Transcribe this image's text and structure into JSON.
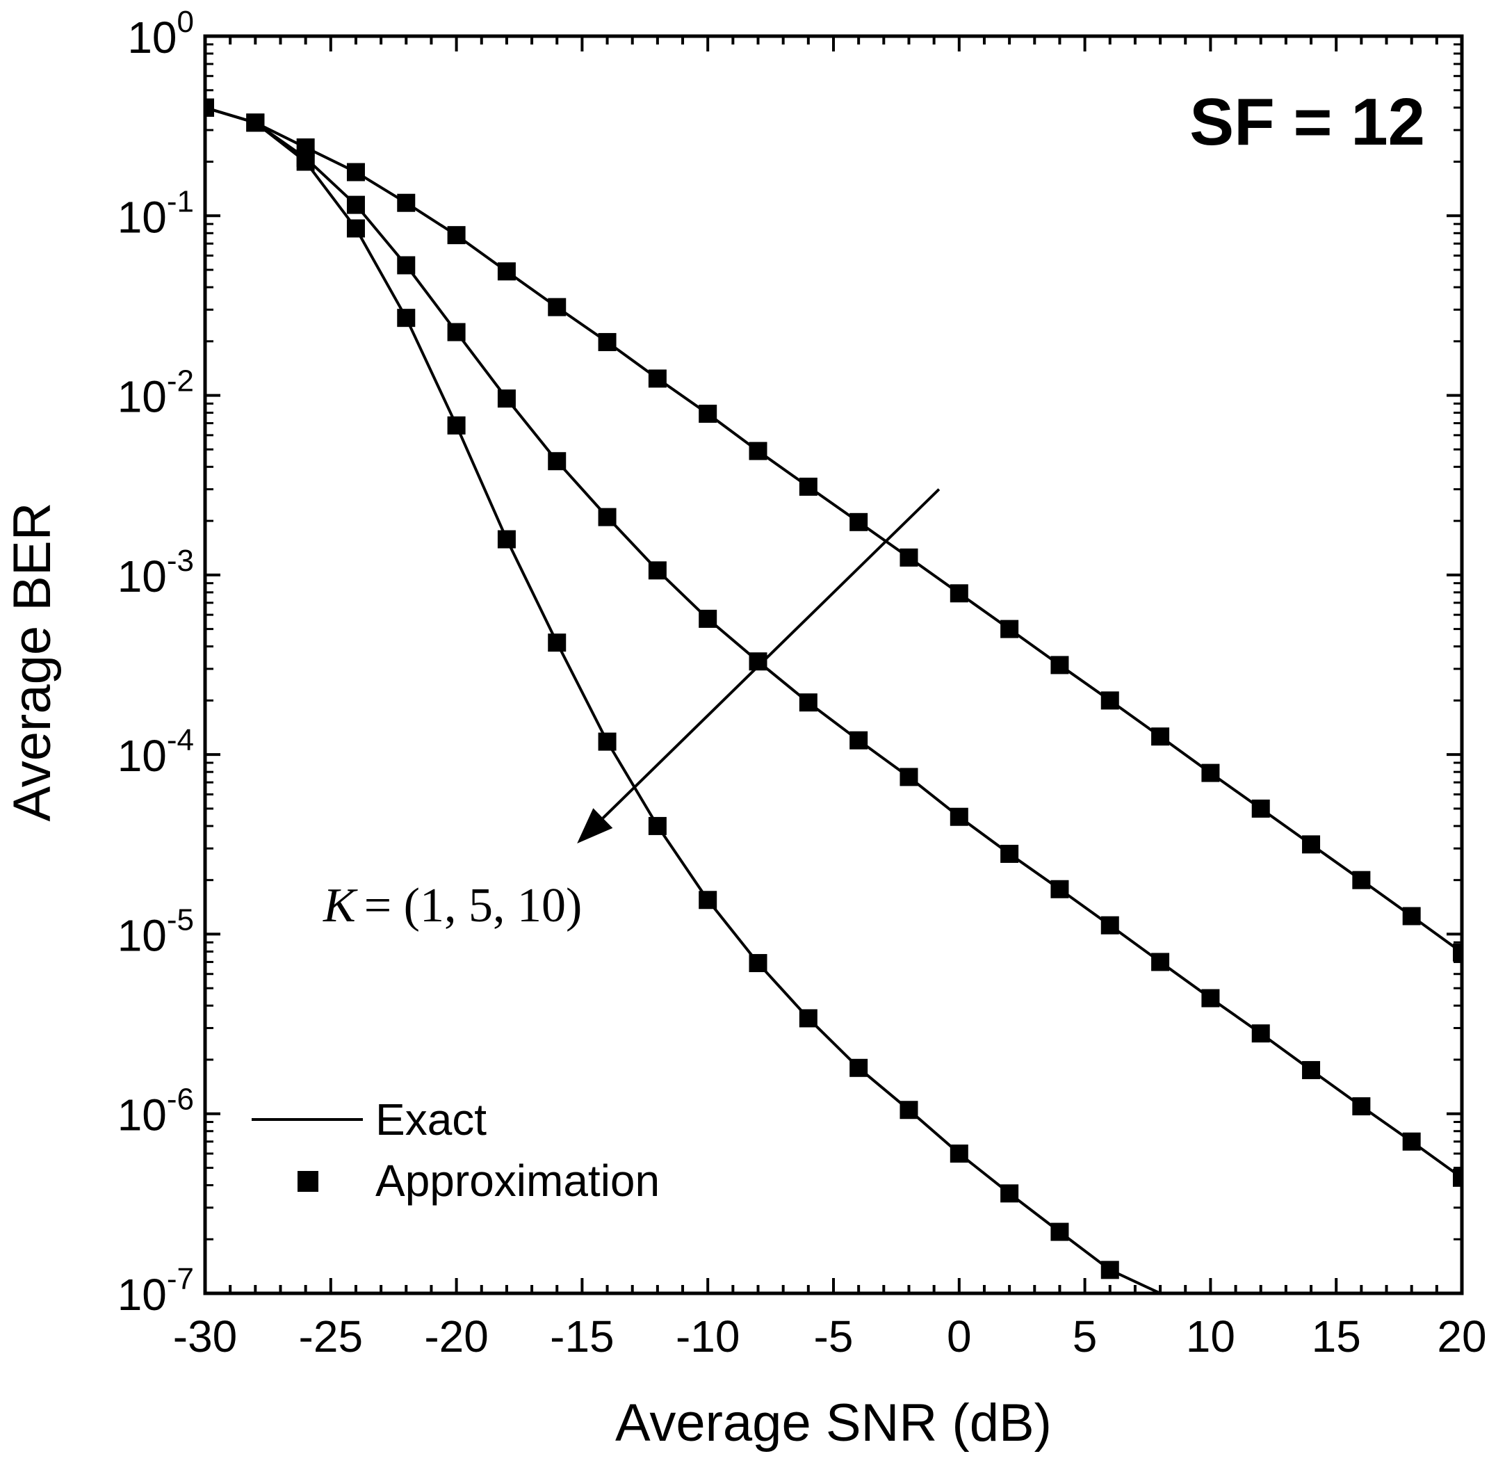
{
  "chart_data": {
    "type": "line",
    "title": "SF = 12",
    "xlabel": "Average SNR (dB)",
    "ylabel": "Average BER",
    "xlim": [
      -30,
      20
    ],
    "ylim": [
      1e-07,
      1
    ],
    "yscale": "log",
    "x_ticks": [
      -30,
      -25,
      -20,
      -15,
      -10,
      -5,
      0,
      5,
      10,
      15,
      20
    ],
    "x_tick_labels": [
      "-30",
      "-25",
      "-20",
      "-15",
      "-10",
      "-5",
      "0",
      "5",
      "10",
      "15",
      "20"
    ],
    "y_ticks": [
      {
        "base": "10",
        "exp": "0"
      },
      {
        "base": "10",
        "exp": "-1"
      },
      {
        "base": "10",
        "exp": "-2"
      },
      {
        "base": "10",
        "exp": "-3"
      },
      {
        "base": "10",
        "exp": "-4"
      },
      {
        "base": "10",
        "exp": "-5"
      },
      {
        "base": "10",
        "exp": "-6"
      },
      {
        "base": "10",
        "exp": "-7"
      }
    ],
    "grid": false,
    "legend": {
      "position": "bottom-left",
      "entries": [
        {
          "label": "Exact",
          "marker": "line"
        },
        {
          "label": "Approximation",
          "marker": "square"
        }
      ]
    },
    "annotation": {
      "k_symbol": "K",
      "k_values": "= (1, 5, 10)",
      "arrow": {
        "from": [
          -0.8,
          0.003
        ],
        "to": [
          -15.2,
          3.2e-05
        ]
      }
    },
    "series": [
      {
        "name": "K = 1",
        "x": [
          -30,
          -28,
          -26,
          -24,
          -22,
          -20,
          -18,
          -16,
          -14,
          -12,
          -10,
          -8,
          -6,
          -4,
          -2,
          0,
          2,
          4,
          6,
          8,
          10,
          12,
          14,
          16,
          18,
          20
        ],
        "y": [
          0.4,
          0.33,
          0.24,
          0.175,
          0.118,
          0.078,
          0.049,
          0.031,
          0.0198,
          0.0124,
          0.0079,
          0.0049,
          0.0031,
          0.00197,
          0.00125,
          0.00079,
          0.0005,
          0.000315,
          0.0002,
          0.000126,
          7.9e-05,
          5e-05,
          3.16e-05,
          2e-05,
          1.26e-05,
          7.9e-06
        ]
      },
      {
        "name": "K = 5",
        "x": [
          -30,
          -28,
          -26,
          -24,
          -22,
          -20,
          -18,
          -16,
          -14,
          -12,
          -10,
          -8,
          -6,
          -4,
          -2,
          0,
          2,
          4,
          6,
          8,
          10,
          12,
          14,
          16,
          18,
          20
        ],
        "y": [
          0.4,
          0.33,
          0.21,
          0.115,
          0.053,
          0.0225,
          0.0096,
          0.0043,
          0.0021,
          0.00106,
          0.00057,
          0.00033,
          0.000195,
          0.00012,
          7.5e-05,
          4.5e-05,
          2.8e-05,
          1.78e-05,
          1.12e-05,
          7e-06,
          4.4e-06,
          2.8e-06,
          1.75e-06,
          1.1e-06,
          7e-07,
          4.4e-07
        ]
      },
      {
        "name": "K = 10",
        "x": [
          -30,
          -28,
          -26,
          -24,
          -22,
          -20,
          -18,
          -16,
          -14,
          -12,
          -10,
          -8,
          -6,
          -4,
          -2,
          0,
          2,
          4,
          6,
          8,
          10,
          12,
          14,
          16,
          18,
          20
        ],
        "y": [
          0.4,
          0.33,
          0.2,
          0.085,
          0.027,
          0.0068,
          0.00158,
          0.00042,
          0.000118,
          4e-05,
          1.55e-05,
          6.9e-06,
          3.4e-06,
          1.8e-06,
          1.05e-06,
          6e-07,
          3.6e-07,
          2.2e-07,
          1.35e-07,
          1e-07,
          1e-07,
          1e-07,
          1e-07,
          1e-07,
          1e-07,
          1e-07
        ],
        "marker_x": [
          -30,
          -28,
          -26,
          -24,
          -22,
          -20,
          -18,
          -16,
          -14,
          -12,
          -10,
          -8,
          -6,
          -4,
          -2,
          0,
          2,
          4,
          6
        ],
        "marker_y": [
          0.4,
          0.33,
          0.2,
          0.085,
          0.027,
          0.0068,
          0.00158,
          0.00042,
          0.000118,
          4e-05,
          1.55e-05,
          6.9e-06,
          3.4e-06,
          1.8e-06,
          1.05e-06,
          6e-07,
          3.6e-07,
          2.2e-07,
          1.35e-07
        ]
      }
    ]
  }
}
